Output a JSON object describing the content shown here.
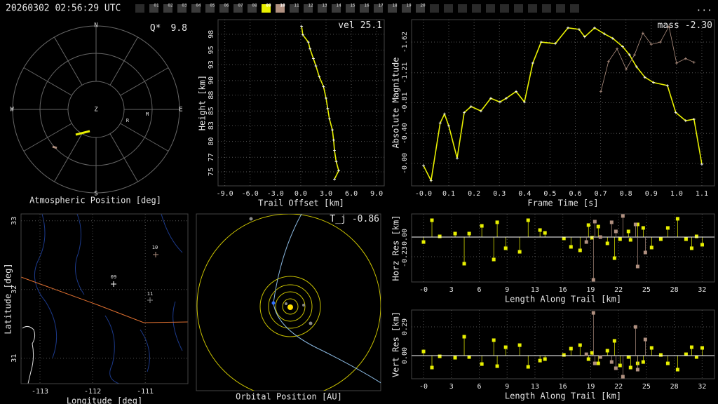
{
  "header": {
    "timestamp": "20260302 02:56:29 UTC",
    "menu": "...",
    "cameras": [
      {
        "label": "01",
        "color": "#3a3a3a"
      },
      {
        "label": "02",
        "color": "#3a3a3a"
      },
      {
        "label": "03",
        "color": "#3a3a3a"
      },
      {
        "label": "04",
        "color": "#3a3a3a"
      },
      {
        "label": "05",
        "color": "#3a3a3a"
      },
      {
        "label": "06",
        "color": "#3a3a3a"
      },
      {
        "label": "07",
        "color": "#3a3a3a"
      },
      {
        "label": "08",
        "color": "#3a3a3a"
      },
      {
        "label": "09",
        "color": "#e8f000"
      },
      {
        "label": "10",
        "color": "#b09080"
      },
      {
        "label": "11",
        "color": "#3a3a3a"
      },
      {
        "label": "12",
        "color": "#3a3a3a"
      },
      {
        "label": "13",
        "color": "#3a3a3a"
      },
      {
        "label": "14",
        "color": "#3a3a3a"
      },
      {
        "label": "15",
        "color": "#3a3a3a"
      },
      {
        "label": "16",
        "color": "#3a3a3a"
      },
      {
        "label": "17",
        "color": "#3a3a3a"
      },
      {
        "label": "18",
        "color": "#3a3a3a"
      },
      {
        "label": "19",
        "color": "#3a3a3a"
      },
      {
        "label": "20",
        "color": "#3a3a3a"
      }
    ]
  },
  "sky": {
    "title": "Atmospheric Position [deg]",
    "quality": {
      "label": "Q*",
      "value": 9.8
    },
    "directions": {
      "north": "N",
      "east": "E",
      "south": "S",
      "west": "W",
      "zenith": "Z"
    },
    "markers": [
      "R",
      "M"
    ]
  },
  "height": {
    "xlabel": "Trail Offset [km]",
    "ylabel": "Height [km]",
    "stat": {
      "label": "vel",
      "value": 25.1
    },
    "xlim": [
      -9.8,
      9.9
    ],
    "ylim": [
      72.7,
      100
    ],
    "xticks": [
      {
        "value": -9,
        "label": "-9.0"
      },
      {
        "value": -6,
        "label": "-6.0"
      },
      {
        "value": -3,
        "label": "-3.0"
      },
      {
        "value": 0,
        "label": "0.0"
      },
      {
        "value": 3,
        "label": "3.0"
      },
      {
        "value": 6,
        "label": "6.0"
      },
      {
        "value": 9,
        "label": "9.0"
      }
    ],
    "yticks": [
      75,
      {
        "value": 77.4,
        "label": "77"
      },
      80,
      {
        "value": 82.6,
        "label": "83"
      },
      85,
      {
        "value": 87.6,
        "label": "88"
      },
      90,
      {
        "value": 92.6,
        "label": "93"
      },
      95,
      {
        "value": 97.6,
        "label": "98"
      }
    ],
    "series": [
      {
        "color": "#e8f000",
        "style": "line",
        "x": [
          0.1,
          0.25,
          0.9,
          1.1,
          1.5,
          1.8,
          2.2,
          2.7,
          3.0,
          3.2,
          3.4,
          3.75,
          3.9,
          4.0,
          4.2,
          4.5,
          4.0
        ],
        "y": [
          98.9,
          97.5,
          96.3,
          95.2,
          93.6,
          92.4,
          90.6,
          89,
          87.1,
          85.4,
          83.7,
          81.9,
          80.2,
          78.5,
          76.7,
          75.2,
          73.8
        ]
      }
    ]
  },
  "magnitude": {
    "xlabel": "Frame Time [s]",
    "ylabel": "Absolute Magnitude",
    "stat": {
      "label": "mass",
      "value": "-2.30"
    },
    "xlim": [
      -0.047,
      1.15
    ],
    "ylim": [
      0.3,
      -1.92
    ],
    "xticks": [
      {
        "value": 0,
        "label": "-0.0"
      },
      0.1,
      0.2,
      0.3,
      0.4,
      0.5,
      0.6,
      0.7,
      0.8,
      0.9,
      {
        "value": 1,
        "label": "1.0"
      },
      1.1
    ],
    "yticks": [
      -1.62,
      -1.21,
      -0.81,
      {
        "value": -0.4,
        "label": "-0.40"
      },
      {
        "value": 0,
        "label": "-0.00"
      }
    ],
    "series": [
      {
        "color": "#e8f000",
        "style": "line",
        "x": [
          0.0,
          0.03,
          0.066,
          0.083,
          0.1,
          0.133,
          0.161,
          0.188,
          0.227,
          0.266,
          0.302,
          0.327,
          0.366,
          0.399,
          0.432,
          0.465,
          0.521,
          0.571,
          0.615,
          0.637,
          0.676,
          0.715,
          0.748,
          0.787,
          0.814,
          0.842,
          0.875,
          0.909,
          0.964,
          0.997,
          1.036,
          1.069,
          1.1
        ],
        "y": [
          0.03,
          0.23,
          -0.54,
          -0.66,
          -0.5,
          -0.07,
          -0.68,
          -0.76,
          -0.7,
          -0.87,
          -0.82,
          -0.87,
          -0.96,
          -0.82,
          -1.34,
          -1.62,
          -1.6,
          -1.81,
          -1.79,
          -1.69,
          -1.81,
          -1.73,
          -1.67,
          -1.56,
          -1.45,
          -1.29,
          -1.15,
          -1.08,
          -1.04,
          -0.68,
          -0.57,
          -0.59,
          0.01
        ]
      },
      {
        "color": "#b09080",
        "style": "line",
        "x": [
          0.701,
          0.731,
          0.765,
          0.801,
          0.834,
          0.867,
          0.9,
          0.936,
          0.97,
          1.0,
          1.036,
          1.069
        ],
        "y": [
          -0.96,
          -1.36,
          -1.53,
          -1.26,
          -1.45,
          -1.74,
          -1.59,
          -1.62,
          -1.83,
          -1.34,
          -1.4,
          -1.35
        ]
      }
    ]
  },
  "map": {
    "xlabel": "Longitude [deg]",
    "ylabel": "Latitude [deg]",
    "xlim": [
      -113.36,
      -110.19
    ],
    "ylim": [
      30.63,
      33.1
    ],
    "xticks": [
      -113,
      -112,
      -111
    ],
    "yticks": [
      33,
      32,
      31
    ],
    "stations": [
      "09",
      "10",
      "11"
    ]
  },
  "orbit": {
    "title": "Orbital Position [AU]",
    "stat": {
      "label": "T_j",
      "value": -0.86
    }
  },
  "horizontal": {
    "xlabel": "Length Along Trail [km]",
    "ylabel": "Horz Res [km]",
    "xlim": [
      -1.35,
      32.9
    ],
    "ylim": [
      -0.526,
      0.271
    ],
    "xticks": [
      {
        "value": 0,
        "label": "-0"
      },
      {
        "value": 3.15,
        "label": "3"
      },
      {
        "value": 6.3,
        "label": "6"
      },
      {
        "value": 9.45,
        "label": "9"
      },
      {
        "value": 12.6,
        "label": "13"
      },
      {
        "value": 15.75,
        "label": "16"
      },
      {
        "value": 18.9,
        "label": "19"
      },
      {
        "value": 22.05,
        "label": "22"
      },
      {
        "value": 25.2,
        "label": "25"
      },
      {
        "value": 28.35,
        "label": "28"
      },
      {
        "value": 31.5,
        "label": "32"
      }
    ],
    "yticks": [
      {
        "value": 0,
        "label": "0.00"
      },
      -0.23
    ],
    "series": [
      {
        "color": "#e8f000",
        "style": "stem",
        "x": [
          0.0,
          0.95,
          1.83,
          3.57,
          4.6,
          5.16,
          6.59,
          7.94,
          8.33,
          9.29,
          10.87,
          11.83,
          13.17,
          13.73,
          15.87,
          16.67,
          17.7,
          18.65,
          19.05,
          19.76,
          20.79,
          21.59,
          22.22,
          23.17,
          23.41,
          24.21,
          24.84,
          25.79,
          26.83,
          27.62,
          28.73,
          29.68,
          30.32,
          30.87,
          31.51
        ],
        "y": [
          -0.058,
          0.197,
          0.008,
          0.041,
          -0.312,
          0.041,
          0.131,
          -0.263,
          0.173,
          -0.131,
          -0.173,
          0.197,
          0.082,
          0.049,
          -0.016,
          -0.115,
          -0.156,
          0.14,
          -0.008,
          0.123,
          -0.074,
          -0.247,
          -0.025,
          0.066,
          -0.033,
          0.148,
          0.107,
          -0.123,
          -0.025,
          0.107,
          0.214,
          -0.025,
          -0.131,
          0.008,
          -0.09
        ]
      },
      {
        "color": "#b09080",
        "style": "stem",
        "x": [
          18.41,
          19.21,
          19.37,
          20.0,
          21.27,
          21.75,
          22.54,
          23.97,
          24.21,
          25.08
        ],
        "y": [
          -0.058,
          -0.501,
          0.181,
          0.0,
          0.173,
          0.066,
          0.247,
          0.148,
          -0.345,
          -0.181
        ]
      }
    ]
  },
  "vertical": {
    "xlabel": "Length Along Trail [km]",
    "ylabel": "Vert Res [km]",
    "xlim": [
      -1.35,
      32.9
    ],
    "ylim": [
      -0.233,
      0.46
    ],
    "xticks": [
      {
        "value": 0,
        "label": "-0"
      },
      {
        "value": 3.15,
        "label": "3"
      },
      {
        "value": 6.3,
        "label": "6"
      },
      {
        "value": 9.45,
        "label": "9"
      },
      {
        "value": 12.6,
        "label": "13"
      },
      {
        "value": 15.75,
        "label": "16"
      },
      {
        "value": 18.9,
        "label": "19"
      },
      {
        "value": 22.05,
        "label": "22"
      },
      {
        "value": 25.2,
        "label": "25"
      },
      {
        "value": 28.35,
        "label": "28"
      },
      {
        "value": 31.5,
        "label": "32"
      }
    ],
    "yticks": [
      0.29,
      {
        "value": 0,
        "label": "0.00"
      }
    ],
    "series": [
      {
        "color": "#e8f000",
        "style": "stem",
        "x": [
          0.0,
          0.95,
          1.83,
          3.57,
          4.6,
          5.16,
          6.59,
          7.94,
          8.33,
          9.29,
          10.87,
          11.83,
          13.17,
          13.73,
          15.87,
          16.67,
          17.7,
          18.65,
          19.05,
          19.76,
          20.79,
          21.59,
          22.22,
          23.17,
          23.41,
          24.21,
          24.84,
          25.79,
          26.83,
          27.62,
          28.73,
          29.68,
          30.32,
          30.87,
          31.51
        ],
        "y": [
          0.042,
          -0.12,
          -0.007,
          -0.021,
          0.191,
          -0.014,
          -0.085,
          0.156,
          -0.106,
          0.085,
          0.106,
          -0.113,
          -0.05,
          -0.035,
          0.007,
          0.071,
          0.106,
          -0.035,
          0.028,
          -0.078,
          0.05,
          0.149,
          -0.099,
          -0.014,
          -0.12,
          -0.078,
          -0.064,
          0.078,
          0.007,
          -0.078,
          -0.141,
          0.014,
          0.085,
          -0.014,
          0.078
        ]
      },
      {
        "color": "#b09080",
        "style": "stem",
        "x": [
          18.41,
          19.21,
          19.37,
          20.0,
          21.27,
          21.75,
          22.54,
          23.97,
          24.21,
          25.08
        ],
        "y": [
          0.014,
          0.431,
          -0.078,
          -0.014,
          -0.064,
          -0.127,
          -0.212,
          0.29,
          -0.141,
          0.163
        ]
      }
    ]
  }
}
